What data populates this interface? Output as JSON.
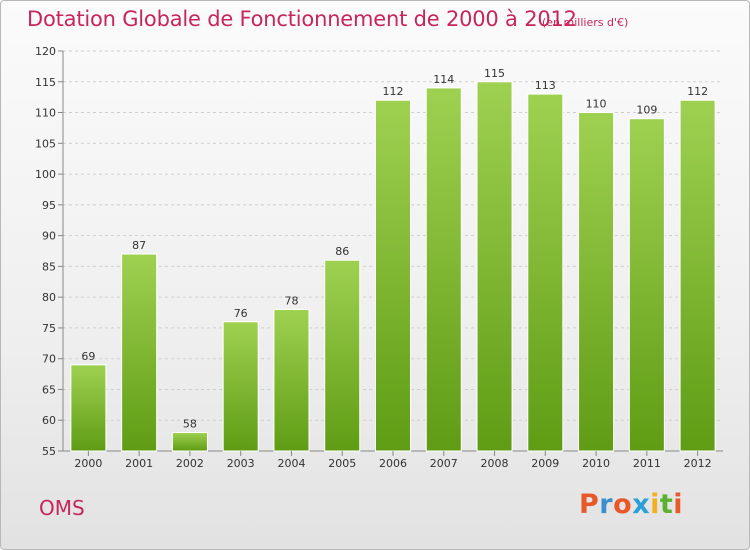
{
  "header": {
    "title": "Dotation Globale de Fonctionnement de 2000 à 2012",
    "subtitle": "(en milliers d'€)"
  },
  "footer": {
    "commune": "OMS",
    "logo_text": "Proxiti"
  },
  "colors": {
    "title": "#c8255c",
    "bar_light": "#9fd151",
    "bar_dark": "#5f9c14",
    "logo": [
      "#e8592a",
      "#3a8fd0",
      "#e8592a",
      "#2a9fd8",
      "#f2b01e",
      "#5bb030",
      "#e8592a"
    ]
  },
  "chart_data": {
    "type": "bar",
    "title": "Dotation Globale de Fonctionnement de 2000 à 2012",
    "subtitle": "(en milliers d'€)",
    "categories": [
      "2000",
      "2001",
      "2002",
      "2003",
      "2004",
      "2005",
      "2006",
      "2007",
      "2008",
      "2009",
      "2010",
      "2011",
      "2012"
    ],
    "values": [
      69,
      87,
      58,
      76,
      78,
      86,
      112,
      114,
      115,
      113,
      110,
      109,
      112
    ],
    "ylim": [
      55,
      120
    ],
    "yticks": [
      55,
      60,
      65,
      70,
      75,
      80,
      85,
      90,
      95,
      100,
      105,
      110,
      115,
      120
    ],
    "grid": "horizontal dashed",
    "legend": "none"
  }
}
